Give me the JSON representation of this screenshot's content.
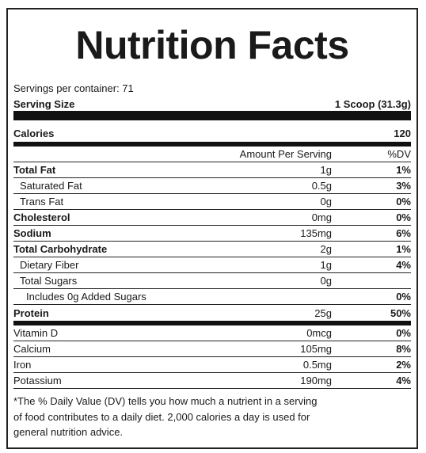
{
  "title": "Nutrition Facts",
  "servings": "Servings per container: 71",
  "serving_size": {
    "label": "Serving Size",
    "value": "1 Scoop (31.3g)"
  },
  "calories": {
    "label": "Calories",
    "value": 120
  },
  "header": {
    "amount": "Amount Per Serving",
    "dv": "%DV"
  },
  "nutrients": [
    {
      "name": "Total Fat",
      "amount": "1g",
      "dv": "1%"
    },
    {
      "name": "Saturated Fat",
      "amount": "0.5g",
      "dv": "3%"
    },
    {
      "name": "Trans Fat",
      "amount": "0g",
      "dv": "0%"
    },
    {
      "name": "Cholesterol",
      "amount": "0mg",
      "dv": "0%"
    },
    {
      "name": "Sodium",
      "amount": "135mg",
      "dv": "6%"
    },
    {
      "name": "Total Carbohydrate",
      "amount": "2g",
      "dv": "1%"
    },
    {
      "name": "Dietary Fiber",
      "amount": "1g",
      "dv": "4%"
    },
    {
      "name": "Total Sugars",
      "amount": "0g"
    },
    {
      "name": "Includes 0g Added Sugars",
      "dv": "0%"
    },
    {
      "name": "Protein",
      "amount": "25g",
      "dv": "50%"
    }
  ],
  "vitamins": [
    {
      "name": "Vitamin D",
      "amount": "0mcg",
      "dv": "0%"
    },
    {
      "name": "Calcium",
      "amount": "105mg",
      "dv": "8%"
    },
    {
      "name": "Iron",
      "amount": "0.5mg",
      "dv": "2%"
    },
    {
      "name": "Potassium",
      "amount": "190mg",
      "dv": "4%"
    }
  ],
  "footnote": [
    "*The % Daily Value (DV) tells you how much a nutrient in a serving",
    "of food contributes to a daily diet. 2,000 calories a day is used for",
    "general nutrition advice."
  ]
}
